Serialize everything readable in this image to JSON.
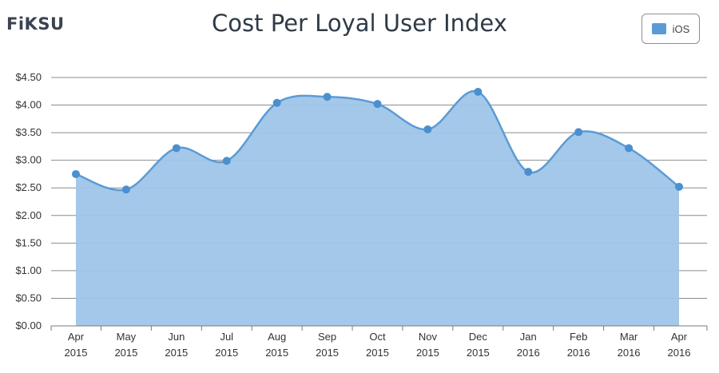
{
  "logo": "FiKSU",
  "chart_data": {
    "type": "area",
    "title": "Cost Per Loyal User Index",
    "categories": [
      [
        "Apr",
        "2015"
      ],
      [
        "May",
        "2015"
      ],
      [
        "Jun",
        "2015"
      ],
      [
        "Jul",
        "2015"
      ],
      [
        "Aug",
        "2015"
      ],
      [
        "Sep",
        "2015"
      ],
      [
        "Oct",
        "2015"
      ],
      [
        "Nov",
        "2015"
      ],
      [
        "Dec",
        "2015"
      ],
      [
        "Jan",
        "2016"
      ],
      [
        "Feb",
        "2016"
      ],
      [
        "Mar",
        "2016"
      ],
      [
        "Apr",
        "2016"
      ]
    ],
    "series": [
      {
        "name": "iOS",
        "values": [
          2.75,
          2.47,
          3.22,
          2.99,
          4.04,
          4.15,
          4.02,
          3.56,
          4.24,
          2.79,
          3.51,
          3.22,
          2.52
        ]
      }
    ],
    "ylim": [
      0,
      4.5
    ],
    "yticks": [
      "$0.00",
      "$0.50",
      "$1.00",
      "$1.50",
      "$2.00",
      "$2.50",
      "$3.00",
      "$3.50",
      "$4.00",
      "$4.50"
    ],
    "ytick_values": [
      0,
      0.5,
      1,
      1.5,
      2,
      2.5,
      3,
      3.5,
      4,
      4.5
    ],
    "grid": true,
    "legend_position": "top-right",
    "colors": {
      "fill": "#9fc5e8",
      "line": "#5b9bd5",
      "marker": "#4a8fd0",
      "grid": "#8c8c8c"
    }
  }
}
